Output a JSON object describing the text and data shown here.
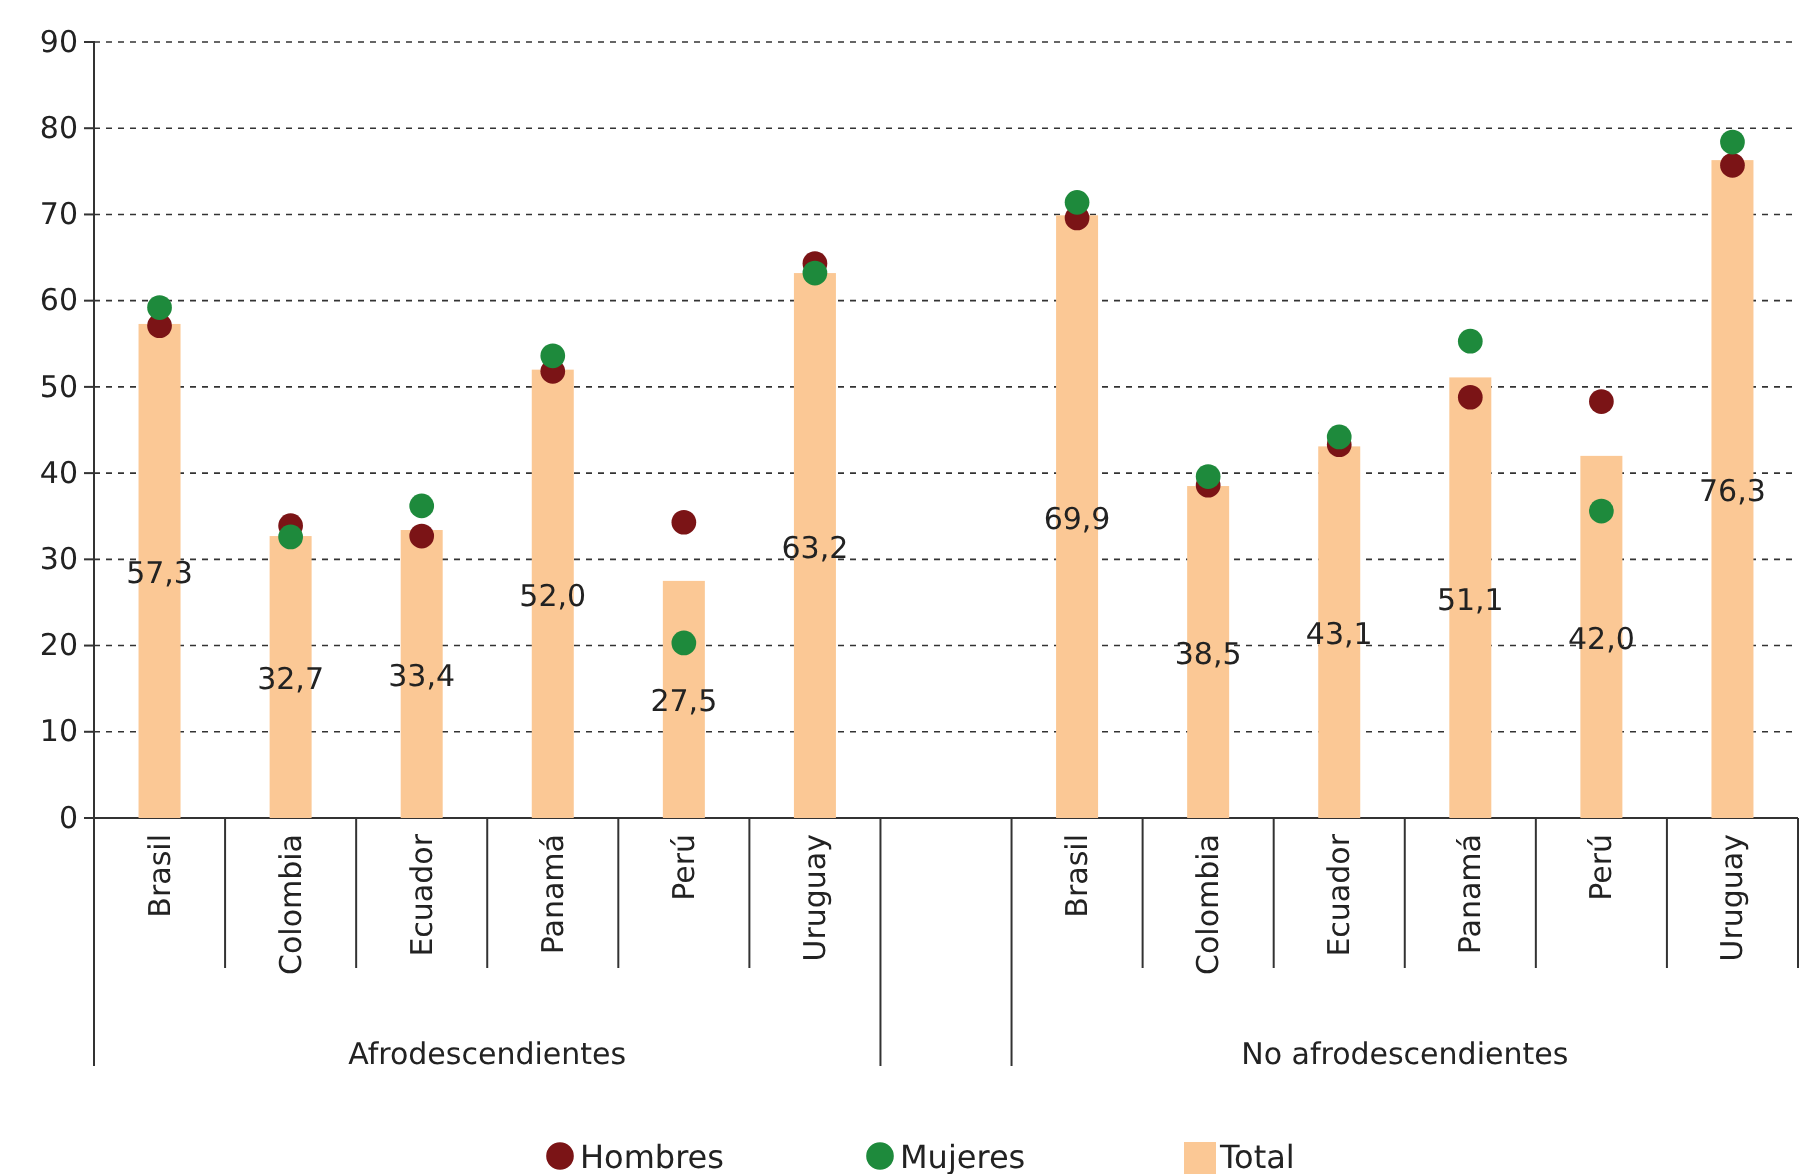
{
  "chart_data": {
    "type": "bar",
    "categories": [
      "Brasil",
      "Colombia",
      "Ecuador",
      "Panamá",
      "Perú",
      "Uruguay",
      null,
      "Brasil",
      "Colombia",
      "Ecuador",
      "Panamá",
      "Perú",
      "Uruguay"
    ],
    "series": [
      {
        "name": "Hombres",
        "type": "scatter",
        "color": "#7b1416",
        "values": [
          57.1,
          33.9,
          32.7,
          51.8,
          34.3,
          64.3,
          null,
          69.6,
          38.6,
          43.3,
          48.8,
          48.3,
          75.7
        ]
      },
      {
        "name": "Mujeres",
        "type": "scatter",
        "color": "#1e8a3c",
        "values": [
          59.2,
          32.6,
          36.2,
          53.6,
          20.3,
          63.2,
          null,
          71.4,
          39.6,
          44.2,
          55.3,
          35.6,
          78.4
        ]
      },
      {
        "name": "Total",
        "color": "#fbc895",
        "values": [
          57.3,
          32.7,
          33.4,
          52.0,
          27.5,
          63.2,
          null,
          69.9,
          38.5,
          43.1,
          51.1,
          42.0,
          76.3
        ],
        "value_labels": [
          "57,3",
          "32,7",
          "33,4",
          "52,0",
          "27,5",
          "63,2",
          null,
          "69,9",
          "38,5",
          "43,1",
          "51,1",
          "42,0",
          "76,3"
        ]
      }
    ],
    "ylim": [
      0,
      90
    ],
    "yticks": [
      0,
      10,
      20,
      30,
      40,
      50,
      60,
      70,
      80,
      90
    ],
    "grid": "y",
    "legend": "bottom",
    "marker": "circle",
    "annotations": [
      "Afrodescendientes",
      "No afrodescendientes"
    ]
  }
}
